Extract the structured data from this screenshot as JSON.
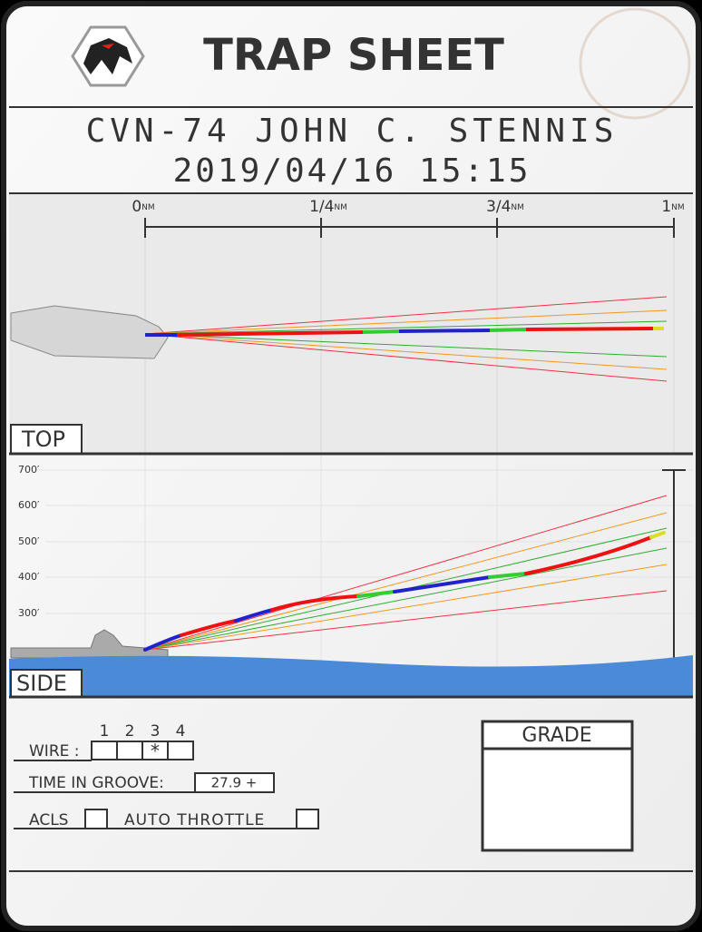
{
  "header": {
    "title": "TRAP SHEET",
    "ship": "CVN-74 JOHN C. STENNIS",
    "datetime": "2019/04/16 15:15"
  },
  "top_view": {
    "label": "TOP",
    "distance_ticks": [
      {
        "value": "0",
        "unit": "NM"
      },
      {
        "value": "1/4",
        "unit": "NM"
      },
      {
        "value": "3/4",
        "unit": "NM"
      },
      {
        "value": "1",
        "unit": "NM"
      }
    ]
  },
  "side_view": {
    "label": "SIDE",
    "altitude_ticks": [
      "700′",
      "600′",
      "500′",
      "400′",
      "300′"
    ]
  },
  "details": {
    "wire": {
      "label": "WIRE :",
      "numbers": [
        "1",
        "2",
        "3",
        "4"
      ],
      "marks": [
        "",
        "",
        "*",
        ""
      ]
    },
    "time_in_groove": {
      "label": "TIME IN GROOVE:",
      "value": "27.9 +"
    },
    "acls": {
      "label": "ACLS"
    },
    "auto_throttle": {
      "label": "AUTO THROTTLE"
    },
    "grade": {
      "label": "GRADE"
    }
  }
}
